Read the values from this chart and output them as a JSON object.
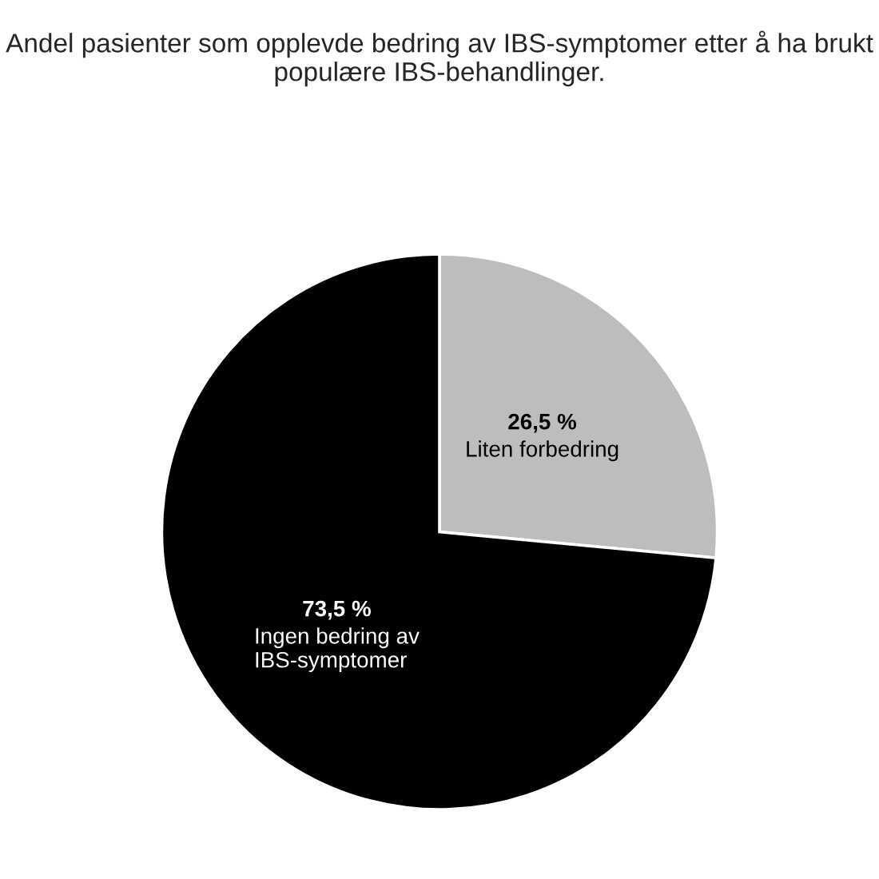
{
  "chart_data": {
    "type": "pie",
    "title": "Andel pasienter som opplevde bedring av IBS-symptomer etter å ha brukt populære IBS-behandlinger.",
    "categories": [
      "Liten forbedring",
      "Ingen bedring av\nIBS-symptomer"
    ],
    "values": [
      26.5,
      73.5
    ],
    "value_labels": [
      "26,5 %",
      "73,5 %"
    ],
    "colors": [
      "#bdbdbd",
      "#000000"
    ],
    "legend": false
  }
}
